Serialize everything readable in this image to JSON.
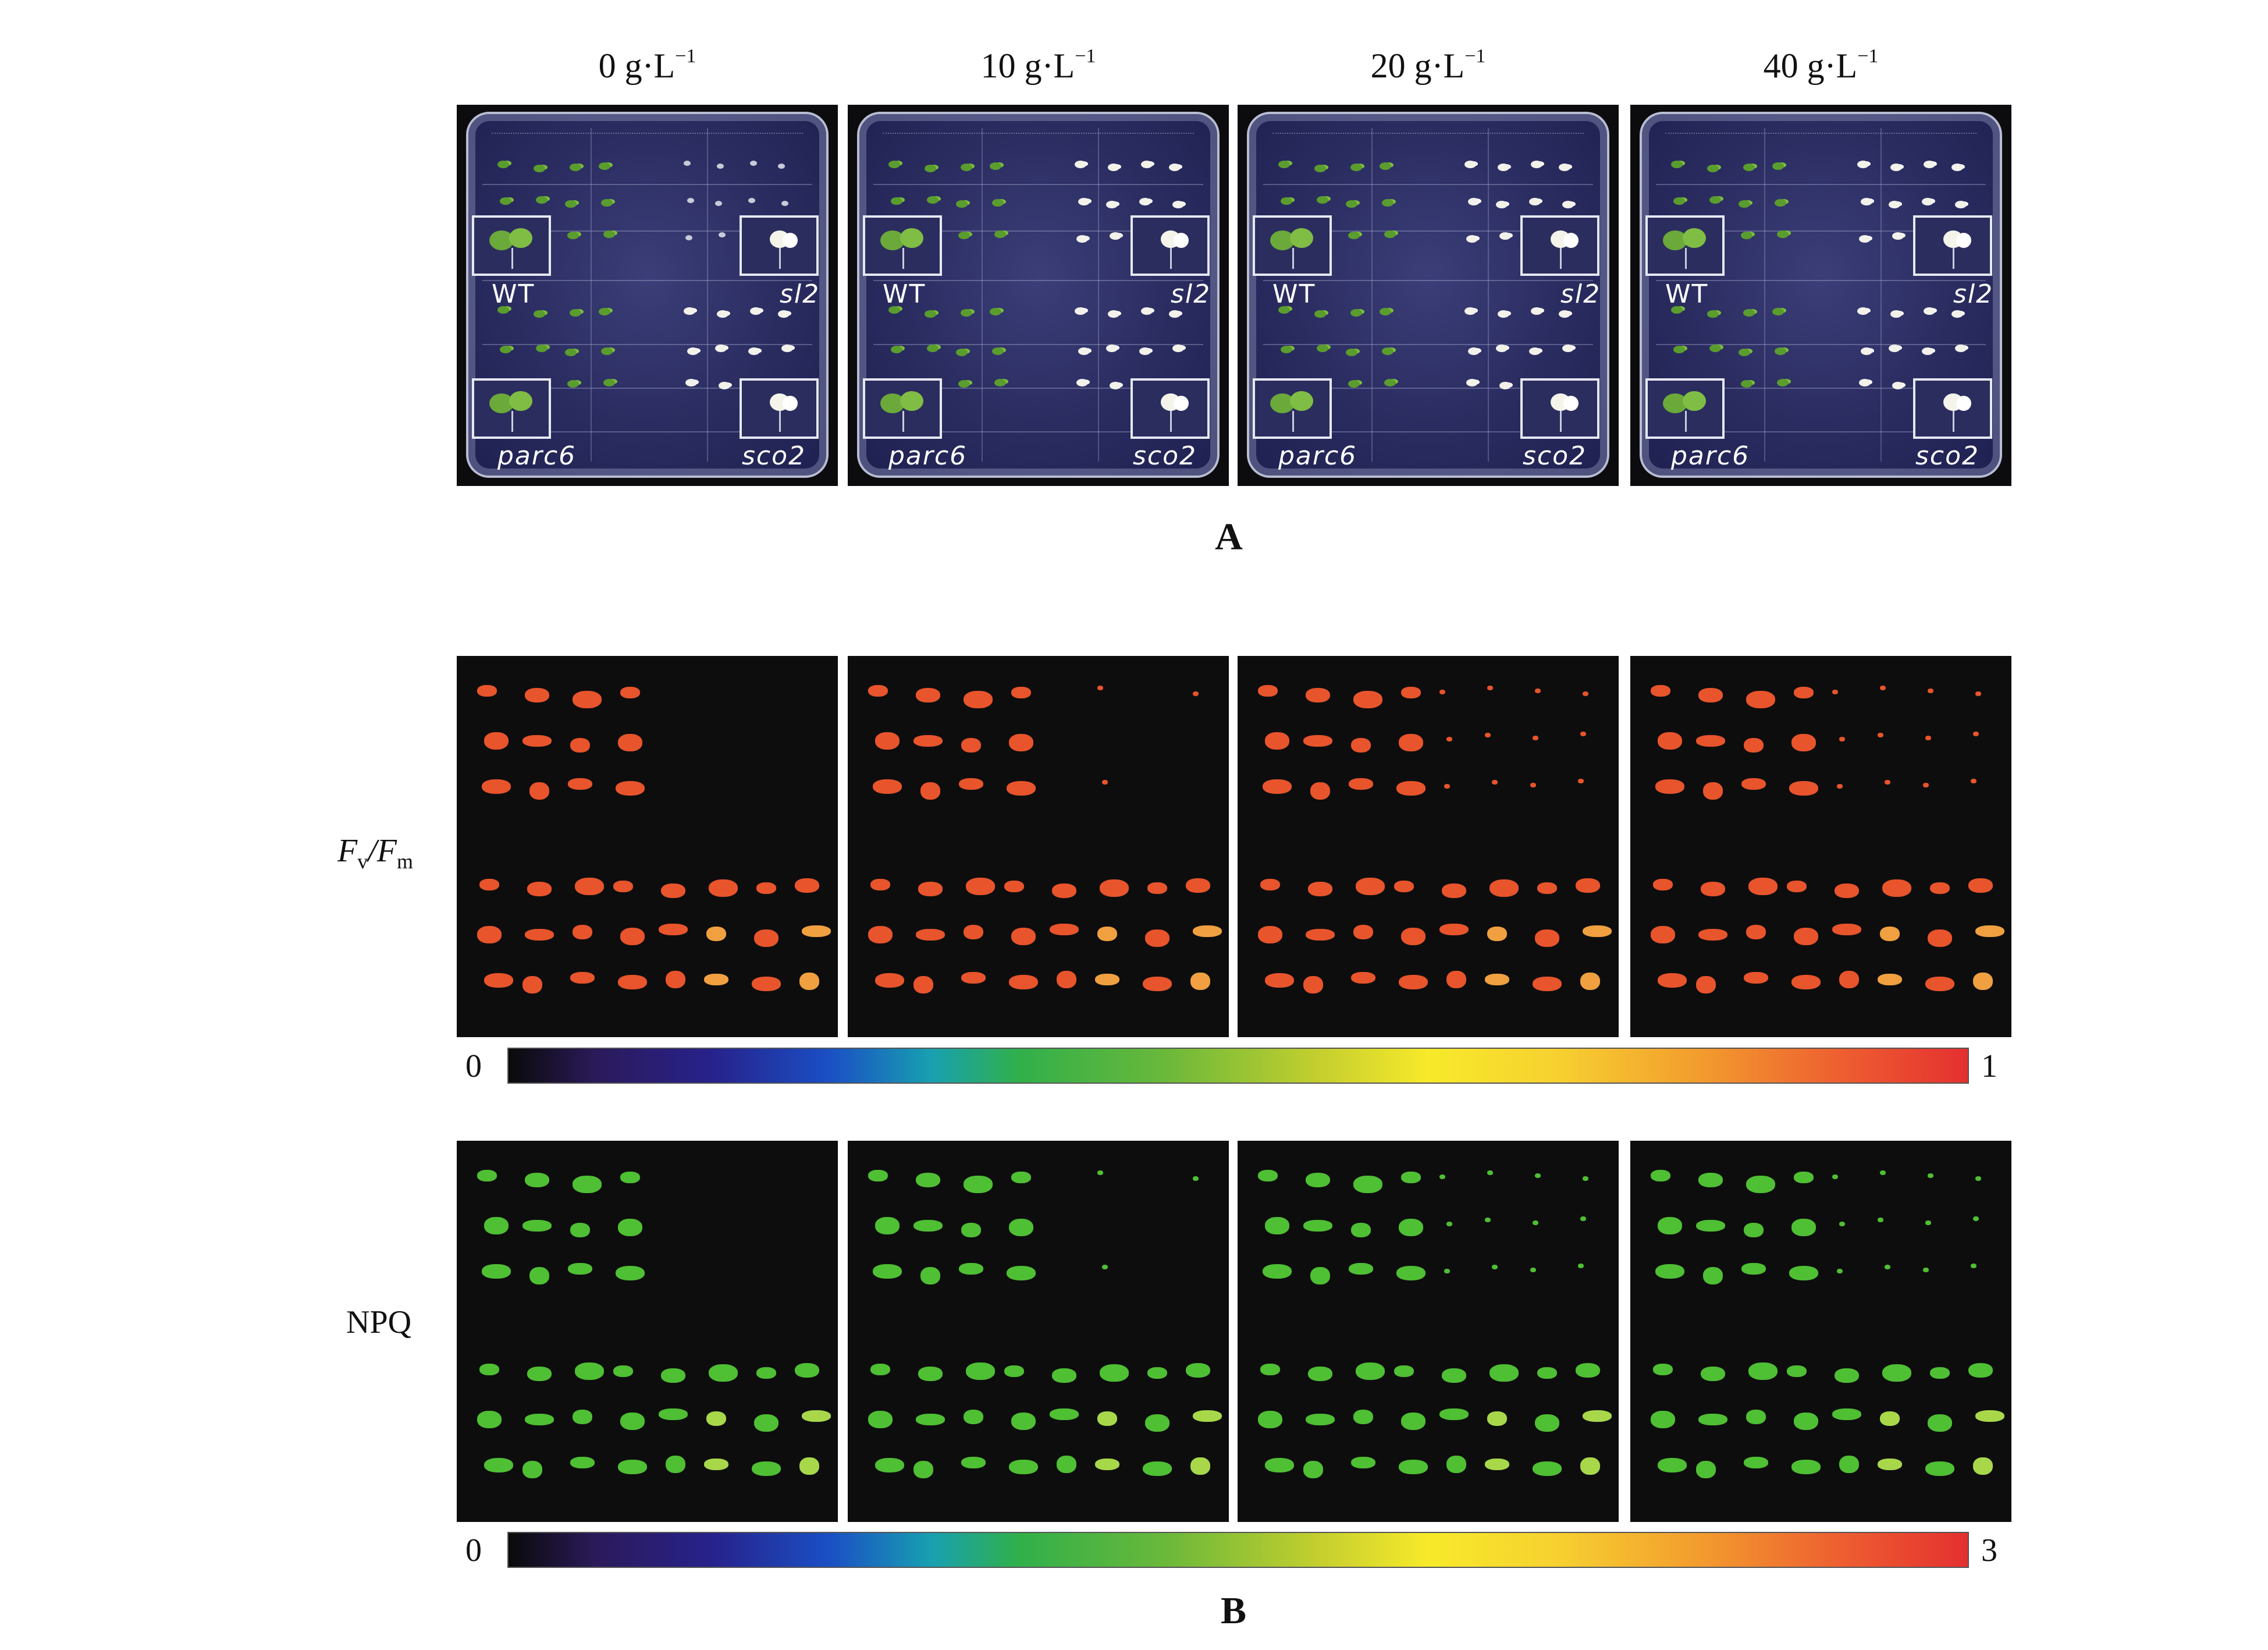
{
  "panel_a": {
    "letter": "A",
    "concentrations": [
      {
        "value": "0 g·L",
        "exp": "−1"
      },
      {
        "value": "10 g·L",
        "exp": "−1"
      },
      {
        "value": "20 g·L",
        "exp": "−1"
      },
      {
        "value": "40 g·L",
        "exp": "−1"
      }
    ],
    "genotypes": {
      "wt": "WT",
      "sl2": "sl2",
      "parc6": "parc6",
      "sco2": "sco2"
    }
  },
  "panel_b": {
    "letter": "B",
    "rows": [
      {
        "label_main": "F",
        "label_sub1": "v",
        "label_slash": "/F",
        "label_sub2": "m",
        "colorbar_min": "0",
        "colorbar_max": "1",
        "pigment": "red-orange"
      },
      {
        "label_main": "NPQ",
        "colorbar_min": "0",
        "colorbar_max": "3",
        "pigment": "green"
      }
    ]
  },
  "colors": {
    "plate_background": "#2a2c60",
    "seedling_green": "#5a9d2e",
    "seedling_white": "#f2f2ea",
    "fvfm_pigment": "#e8542c",
    "npq_pigment": "#4fbf34"
  }
}
